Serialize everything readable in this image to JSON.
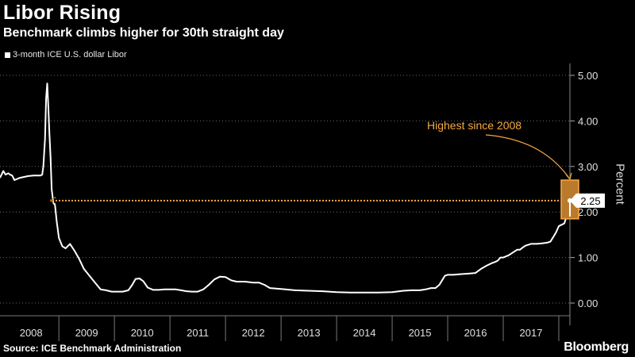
{
  "title": "Libor Rising",
  "subtitle": "Benchmark climbs higher for 30th straight day",
  "legend_label": "3-month ICE U.S. dollar Libor",
  "source": "Source: ICE Benchmark Administration",
  "brand": "Bloomberg",
  "colors": {
    "line": "#ffffff",
    "annotation": "#f7a940",
    "background": "#000000"
  },
  "chart_data": {
    "type": "line",
    "title": "Libor Rising",
    "subtitle": "Benchmark climbs higher for 30th straight day",
    "ylabel": "Percent",
    "xlim": [
      2007.94,
      2018.2
    ],
    "ylim": [
      0,
      5.0
    ],
    "yticks": [
      0,
      1,
      2,
      3,
      4,
      5
    ],
    "ytick_labels": [
      "0.00",
      "1.00",
      "2.00",
      "3.00",
      "4.00",
      "5.00"
    ],
    "xtick_labels": [
      "2008",
      "2009",
      "2010",
      "2011",
      "2012",
      "2013",
      "2014",
      "2015",
      "2016",
      "2017"
    ],
    "grid": "horizontal dotted",
    "last_value_label": "2.25",
    "annotation": {
      "text": "Highest since 2008",
      "reference_value": 2.25
    },
    "series": [
      {
        "name": "3-month ICE U.S. dollar Libor",
        "x": [
          2007.94,
          2008.0,
          2008.04,
          2008.09,
          2008.12,
          2008.16,
          2008.2,
          2008.3,
          2008.45,
          2008.55,
          2008.62,
          2008.67,
          2008.7,
          2008.72,
          2008.75,
          2008.77,
          2008.79,
          2008.81,
          2008.83,
          2008.85,
          2008.87,
          2008.9,
          2008.93,
          2008.96,
          2009.0,
          2009.06,
          2009.12,
          2009.2,
          2009.28,
          2009.36,
          2009.45,
          2009.55,
          2009.65,
          2009.75,
          2009.85,
          2009.95,
          2010.05,
          2010.15,
          2010.25,
          2010.32,
          2010.38,
          2010.45,
          2010.52,
          2010.6,
          2010.7,
          2010.8,
          2010.9,
          2011.0,
          2011.1,
          2011.2,
          2011.3,
          2011.4,
          2011.5,
          2011.6,
          2011.7,
          2011.8,
          2011.9,
          2012.0,
          2012.1,
          2012.2,
          2012.35,
          2012.5,
          2012.6,
          2012.7,
          2012.8,
          2013.0,
          2013.25,
          2013.5,
          2013.75,
          2014.0,
          2014.25,
          2014.5,
          2014.75,
          2015.0,
          2015.2,
          2015.35,
          2015.5,
          2015.6,
          2015.7,
          2015.78,
          2015.85,
          2015.9,
          2015.95,
          2016.0,
          2016.1,
          2016.2,
          2016.3,
          2016.4,
          2016.5,
          2016.6,
          2016.7,
          2016.8,
          2016.85,
          2016.9,
          2016.95,
          2017.0,
          2017.1,
          2017.2,
          2017.25,
          2017.3,
          2017.35,
          2017.4,
          2017.5,
          2017.6,
          2017.7,
          2017.8,
          2017.85,
          2017.9,
          2017.95,
          2018.0,
          2018.05,
          2018.1,
          2018.15,
          2018.2
        ],
        "y": [
          2.75,
          2.9,
          2.82,
          2.85,
          2.82,
          2.8,
          2.7,
          2.75,
          2.79,
          2.8,
          2.8,
          2.8,
          2.82,
          3.0,
          3.6,
          4.5,
          4.82,
          4.3,
          3.7,
          3.2,
          2.5,
          2.2,
          2.15,
          1.8,
          1.43,
          1.25,
          1.2,
          1.3,
          1.15,
          0.98,
          0.75,
          0.6,
          0.45,
          0.3,
          0.28,
          0.25,
          0.25,
          0.25,
          0.28,
          0.4,
          0.53,
          0.54,
          0.48,
          0.34,
          0.29,
          0.29,
          0.3,
          0.3,
          0.3,
          0.28,
          0.26,
          0.25,
          0.25,
          0.3,
          0.4,
          0.52,
          0.58,
          0.57,
          0.5,
          0.47,
          0.47,
          0.45,
          0.45,
          0.4,
          0.33,
          0.31,
          0.28,
          0.27,
          0.26,
          0.24,
          0.23,
          0.23,
          0.23,
          0.24,
          0.27,
          0.28,
          0.28,
          0.3,
          0.33,
          0.33,
          0.4,
          0.5,
          0.6,
          0.62,
          0.62,
          0.63,
          0.64,
          0.65,
          0.66,
          0.75,
          0.82,
          0.88,
          0.9,
          0.93,
          1.0,
          1.0,
          1.05,
          1.13,
          1.17,
          1.17,
          1.22,
          1.26,
          1.3,
          1.3,
          1.31,
          1.33,
          1.35,
          1.45,
          1.55,
          1.69,
          1.72,
          1.75,
          1.95,
          2.25
        ]
      }
    ]
  }
}
